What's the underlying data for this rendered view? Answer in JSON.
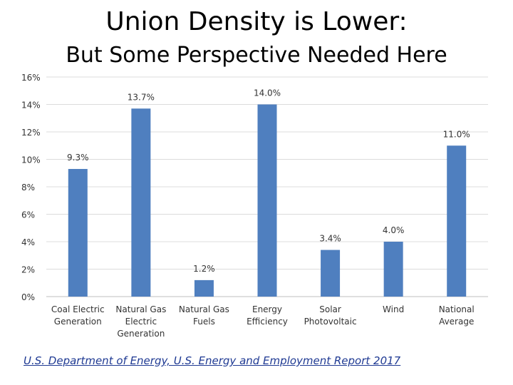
{
  "title": "Union Density is Lower:",
  "subtitle": "But Some Perspective Needed Here",
  "source": "U.S. Department of Energy, U.S. Energy and Employment Report 2017",
  "bar_color": "#4f7fbf",
  "chart_data": {
    "type": "bar",
    "categories": [
      [
        "Coal Electric",
        "Generation"
      ],
      [
        "Natural Gas",
        "Electric",
        "Generation"
      ],
      [
        "Natural Gas",
        "Fuels"
      ],
      [
        "Energy",
        "Efficiency"
      ],
      [
        "Solar",
        "Photovoltaic"
      ],
      [
        "Wind"
      ],
      [
        "National",
        "Average"
      ]
    ],
    "values": [
      9.3,
      13.7,
      1.2,
      14.0,
      3.4,
      4.0,
      11.0
    ],
    "data_labels": [
      "9.3%",
      "13.7%",
      "1.2%",
      "14.0%",
      "3.4%",
      "4.0%",
      "11.0%"
    ],
    "y_ticks": [
      0,
      2,
      4,
      6,
      8,
      10,
      12,
      14,
      16
    ],
    "y_tick_labels": [
      "0%",
      "2%",
      "4%",
      "6%",
      "8%",
      "10%",
      "12%",
      "14%",
      "16%"
    ],
    "ylim": [
      0,
      16
    ],
    "grid": true
  }
}
